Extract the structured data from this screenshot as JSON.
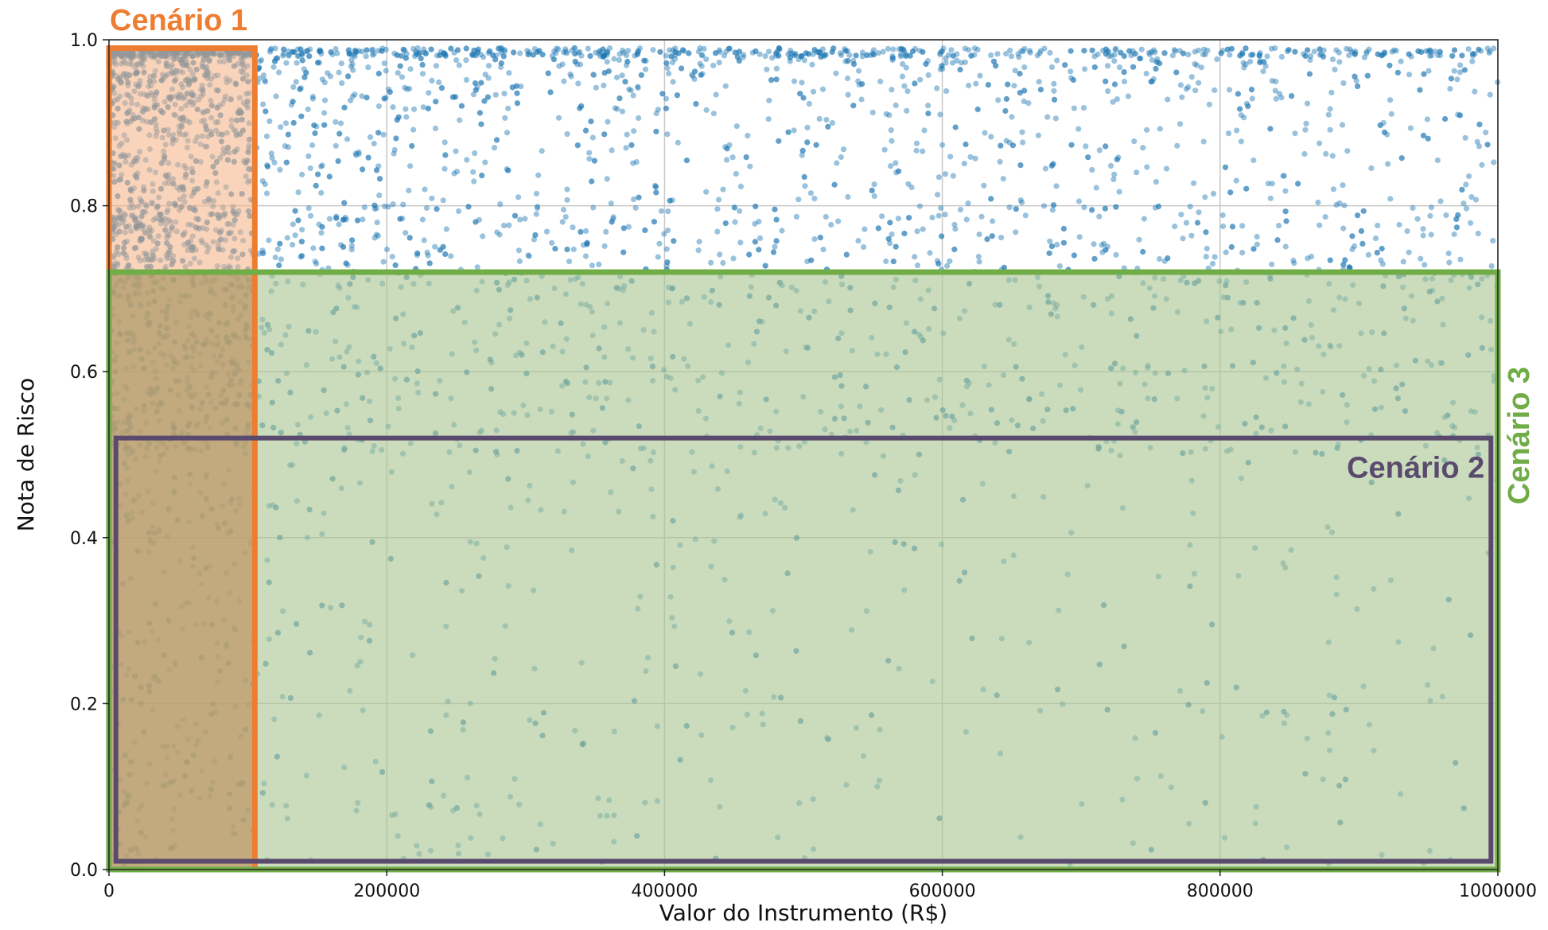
{
  "chart_data": {
    "type": "scatter",
    "title": "",
    "xlabel": "Valor do Instrumento (R$)",
    "ylabel": "Nota de Risco",
    "xlim": [
      0,
      1000000
    ],
    "ylim": [
      0,
      1.0
    ],
    "grid": true,
    "x_ticks": [
      "0",
      "200000",
      "400000",
      "600000",
      "800000",
      "1000000"
    ],
    "x_tick_values": [
      0,
      200000,
      400000,
      600000,
      800000,
      1000000
    ],
    "y_ticks": [
      "0.0",
      "0.2",
      "0.4",
      "0.6",
      "0.8",
      "1.0"
    ],
    "y_tick_values": [
      0.0,
      0.2,
      0.4,
      0.6,
      0.8,
      1.0
    ],
    "point_color": "#1f77b4",
    "point_density_note": "thousands of points; dense near 1.0 risk score and low instrument values",
    "scenarios": [
      {
        "label": "Cenário 1",
        "x_range": [
          0,
          105000
        ],
        "y_range": [
          0.0,
          0.99
        ],
        "color": "#ed7d31",
        "fill": "#f4b183"
      },
      {
        "label": "Cenário 2",
        "x_range": [
          5000,
          995000
        ],
        "y_range": [
          0.01,
          0.52
        ],
        "color": "#5a4a6e",
        "fill": "none"
      },
      {
        "label": "Cenário 3",
        "x_range": [
          0,
          1000000
        ],
        "y_range": [
          0.0,
          0.72
        ],
        "color": "#70ad47",
        "fill": "#a9c48f"
      }
    ]
  }
}
